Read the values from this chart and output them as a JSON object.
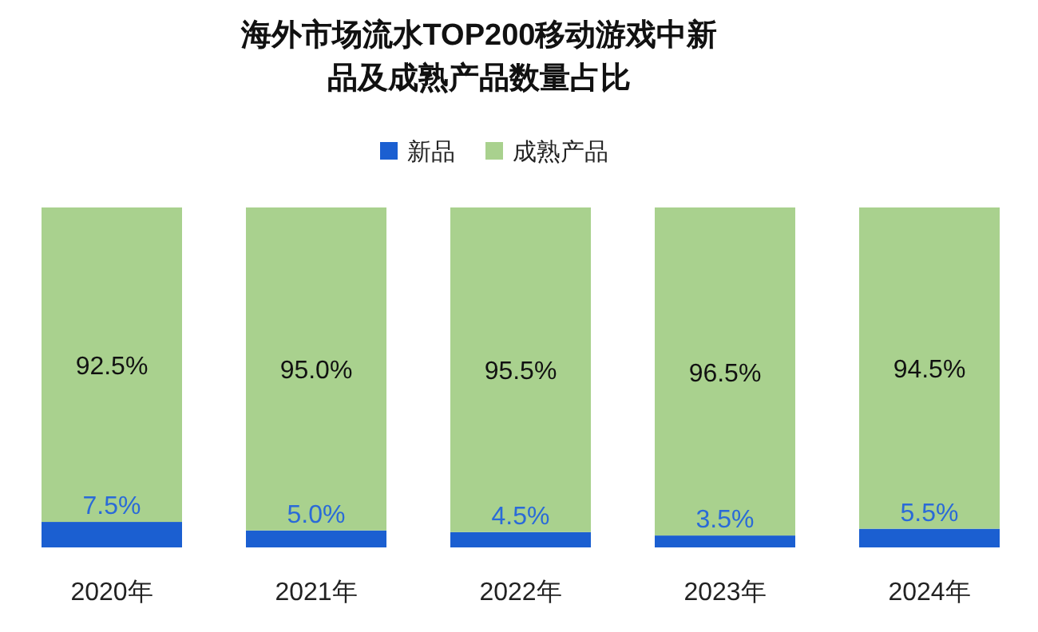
{
  "chart_data": {
    "type": "bar",
    "title": "海外市场流水TOP200移动游戏中新品及成熟产品数量占比",
    "categories": [
      "2020年",
      "2021年",
      "2022年",
      "2023年",
      "2024年"
    ],
    "stacked": true,
    "data_labels": true,
    "legend": "top",
    "series": [
      {
        "name": "新品",
        "color": "#1b5fd1",
        "values": [
          7.5,
          5.0,
          4.5,
          3.5,
          5.5
        ],
        "value_labels": [
          "7.5%",
          "5.0%",
          "4.5%",
          "3.5%",
          "5.5%"
        ]
      },
      {
        "name": "成熟产品",
        "color": "#a9d18e",
        "values": [
          92.5,
          95.0,
          95.5,
          96.5,
          94.5
        ],
        "value_labels": [
          "92.5%",
          "95.0%",
          "95.5%",
          "96.5%",
          "94.5%"
        ]
      }
    ]
  }
}
